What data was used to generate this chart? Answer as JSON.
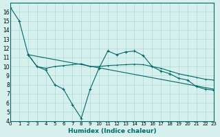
{
  "bg_color": "#d6f0ee",
  "grid_color": "#aad8d3",
  "line_color": "#006666",
  "xlabel": "Humidex (Indice chaleur)",
  "xlim": [
    0,
    23
  ],
  "ylim": [
    4,
    17
  ],
  "xticks": [
    0,
    1,
    2,
    3,
    4,
    5,
    6,
    7,
    8,
    9,
    10,
    11,
    12,
    13,
    14,
    15,
    16,
    17,
    18,
    19,
    20,
    21,
    22,
    23
  ],
  "yticks": [
    4,
    5,
    6,
    7,
    8,
    9,
    10,
    11,
    12,
    13,
    14,
    15,
    16
  ],
  "series": [
    {
      "x": [
        0,
        1,
        2
      ],
      "y": [
        16.5,
        15.0,
        11.3
      ]
    },
    {
      "x": [
        2,
        3,
        4,
        5,
        6,
        7,
        8,
        9,
        10,
        11,
        12,
        13,
        14,
        15,
        16,
        17,
        18,
        19,
        20,
        21,
        22,
        23
      ],
      "y": [
        11.3,
        10.0,
        9.6,
        8.0,
        7.5,
        5.8,
        4.3,
        7.5,
        9.8,
        11.7,
        11.3,
        11.6,
        11.7,
        11.2,
        10.0,
        9.5,
        9.2,
        8.7,
        8.5,
        7.8,
        7.5,
        7.4
      ]
    },
    {
      "x": [
        2,
        3,
        4,
        5,
        6,
        7,
        8,
        9,
        10,
        11,
        12,
        13,
        14,
        15,
        16,
        17,
        18,
        19,
        20,
        21,
        22,
        23
      ],
      "y": [
        11.3,
        10.0,
        9.8,
        10.0,
        10.1,
        10.2,
        10.3,
        10.0,
        10.0,
        10.1,
        10.15,
        10.2,
        10.25,
        10.2,
        10.0,
        9.8,
        9.5,
        9.2,
        9.0,
        8.8,
        8.6,
        8.5
      ]
    },
    {
      "x": [
        2,
        23
      ],
      "y": [
        11.3,
        7.5
      ]
    }
  ]
}
